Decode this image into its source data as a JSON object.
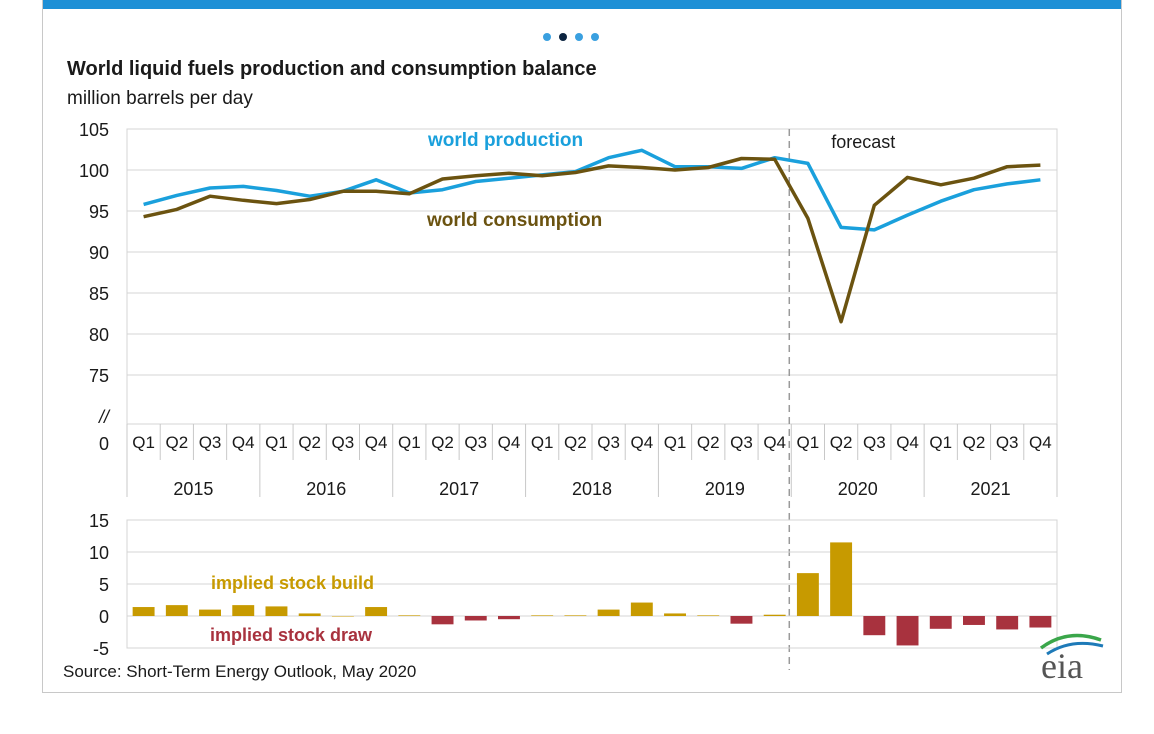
{
  "title": "World liquid fuels production and consumption balance",
  "subtitle": "million barrels per day",
  "source": "Source: Short-Term Energy Outlook, May 2020",
  "logo_text": "eia",
  "carousel": {
    "count": 4,
    "active": 1
  },
  "colors": {
    "accent": "#1e90d6",
    "production": "#1aa0dc",
    "consumption": "#6b5310",
    "build": "#c79a00",
    "draw": "#a8323e",
    "grid": "#d4d4d4"
  },
  "chart_data": [
    {
      "type": "line",
      "ylabel": "million barrels per day",
      "ylim": [
        75,
        105
      ],
      "yticks": [
        "105",
        "100",
        "95",
        "90",
        "85",
        "80",
        "75",
        "//",
        "0"
      ],
      "quarters": [
        "Q1",
        "Q2",
        "Q3",
        "Q4",
        "Q1",
        "Q2",
        "Q3",
        "Q4",
        "Q1",
        "Q2",
        "Q3",
        "Q4",
        "Q1",
        "Q2",
        "Q3",
        "Q4",
        "Q1",
        "Q2",
        "Q3",
        "Q4",
        "Q1",
        "Q2",
        "Q3",
        "Q4",
        "Q1",
        "Q2",
        "Q3",
        "Q4"
      ],
      "years": [
        "2015",
        "2016",
        "2017",
        "2018",
        "2019",
        "2020",
        "2021"
      ],
      "forecast_label": "forecast",
      "forecast_start_index": 21,
      "series": [
        {
          "name": "world production",
          "values": [
            95.8,
            96.9,
            97.8,
            98.0,
            97.5,
            96.8,
            97.4,
            98.8,
            97.2,
            97.6,
            98.6,
            99.0,
            99.4,
            99.8,
            101.5,
            102.4,
            100.4,
            100.4,
            100.2,
            101.5,
            100.8,
            93.0,
            92.7,
            94.5,
            96.2,
            97.6,
            98.3,
            98.8
          ]
        },
        {
          "name": "world consumption",
          "values": [
            94.3,
            95.2,
            96.8,
            96.3,
            95.9,
            96.4,
            97.4,
            97.4,
            97.1,
            98.9,
            99.3,
            99.6,
            99.3,
            99.7,
            100.5,
            100.3,
            100.0,
            100.3,
            101.4,
            101.3,
            94.1,
            81.5,
            95.7,
            99.1,
            98.2,
            99.0,
            100.4,
            100.6
          ]
        }
      ]
    },
    {
      "type": "bar",
      "ylim": [
        -5,
        15
      ],
      "yticks": [
        "15",
        "10",
        "5",
        "0",
        "-5"
      ],
      "annotations": [
        "implied stock  build",
        "implied stock draw"
      ],
      "values": [
        1.4,
        1.7,
        1.0,
        1.7,
        1.5,
        0.4,
        0.0,
        1.4,
        0.1,
        -1.3,
        -0.7,
        -0.5,
        0.1,
        0.1,
        1.0,
        2.1,
        0.4,
        0.1,
        -1.2,
        0.2,
        6.7,
        11.5,
        -3.0,
        -4.6,
        -2.0,
        -1.4,
        -2.1,
        -1.8
      ]
    }
  ]
}
